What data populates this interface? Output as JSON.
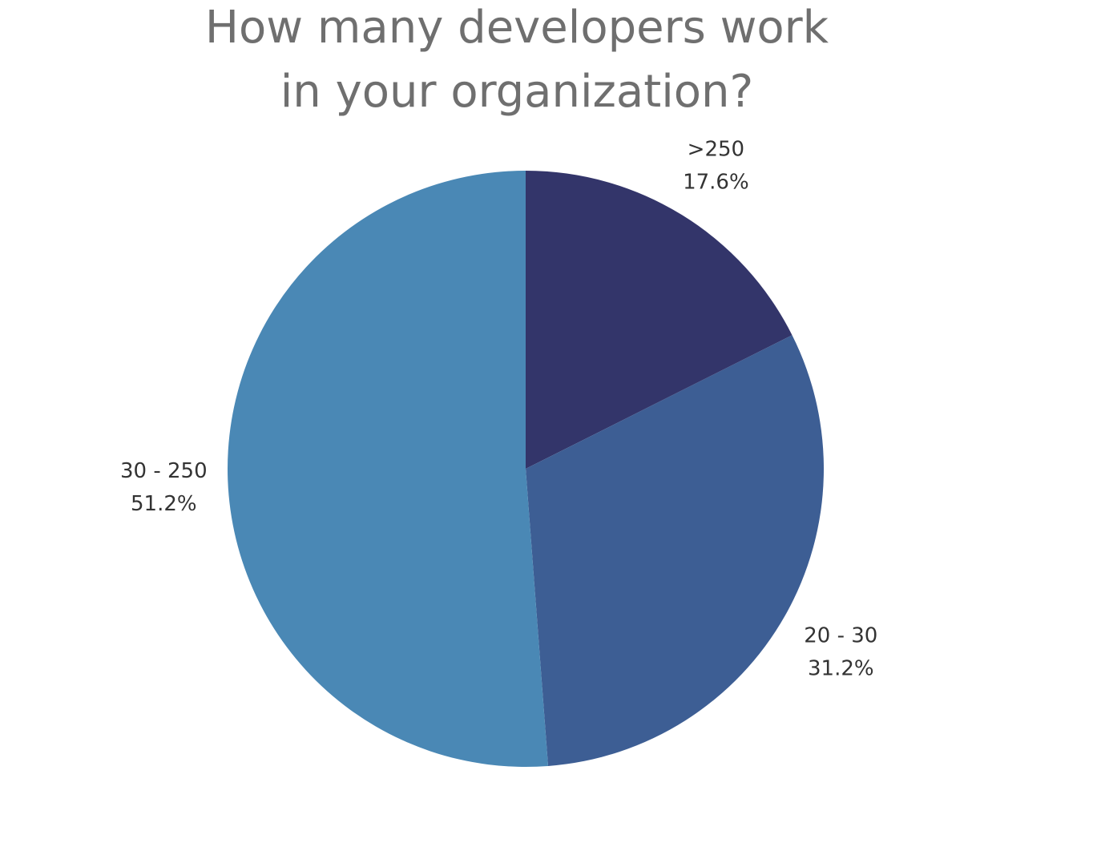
{
  "chart_data": {
    "type": "pie",
    "title_lines": [
      "How many developers work",
      "in your organization?"
    ],
    "slices": [
      {
        "label": ">250",
        "value_label": "17.6%",
        "value": 17.6,
        "color": "#33356a"
      },
      {
        "label": "20 - 30",
        "value_label": "31.2%",
        "value": 31.2,
        "color": "#3d5e94"
      },
      {
        "label": "30 - 250",
        "value_label": "51.2%",
        "value": 51.2,
        "color": "#4a88b5"
      }
    ],
    "start_angle_deg": 0,
    "direction": "clockwise"
  }
}
